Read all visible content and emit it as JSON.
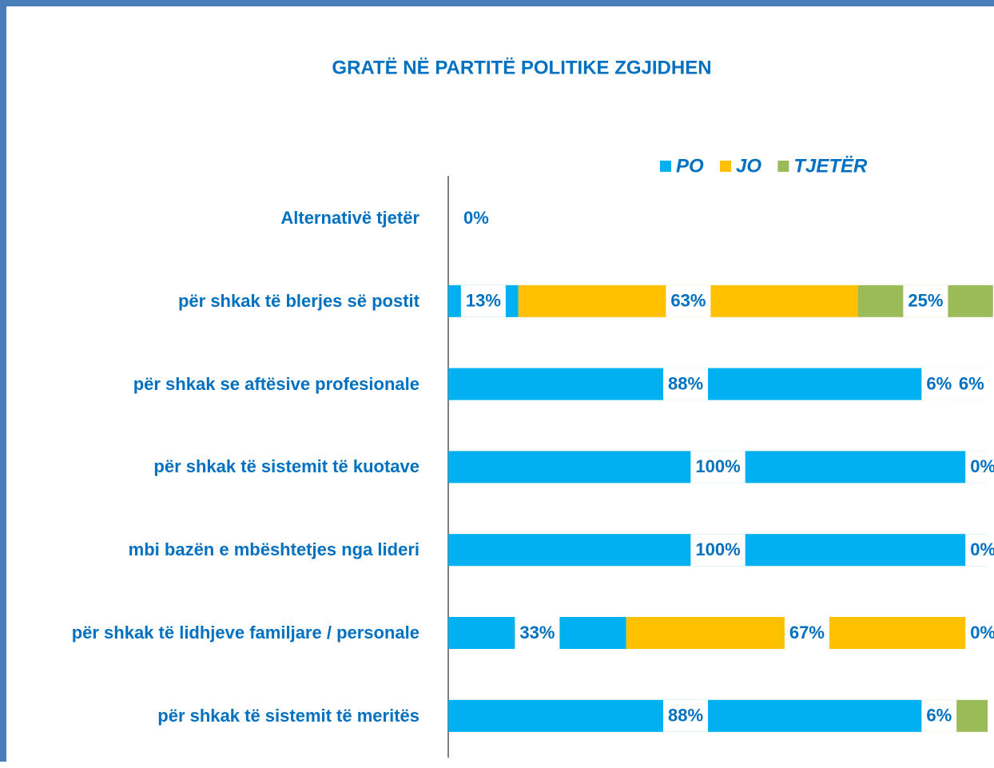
{
  "chart_data": {
    "type": "stacked-bar-horizontal",
    "title": "GRATË NË PARTITË POLITIKE ZGJIDHEN",
    "categories": [
      "Alternativë tjetër",
      "për shkak të blerjes së postit",
      "për shkak se aftësive profesionale",
      "për shkak të sistemit të kuotave",
      "mbi bazën e mbështetjes nga lideri",
      "për shkak të lidhjeve familjare / personale",
      "për shkak të sistemit të meritës"
    ],
    "series": [
      {
        "name": "PO",
        "color": "#00b0f0",
        "values": [
          0,
          13,
          88,
          100,
          100,
          33,
          88
        ],
        "value_labels": [
          "0%",
          "13%",
          "88%",
          "100%",
          "100%",
          "33%",
          "88%"
        ]
      },
      {
        "name": "JO",
        "color": "#ffc000",
        "values": [
          null,
          63,
          6,
          0,
          0,
          67,
          6
        ],
        "value_labels": [
          null,
          "63%",
          "6%",
          "0%",
          "0%",
          "67%",
          "6%"
        ]
      },
      {
        "name": "TJETËR",
        "color": "#9bbb59",
        "values": [
          null,
          25,
          6,
          null,
          null,
          0,
          6
        ],
        "value_labels": [
          null,
          "25%",
          "6%",
          null,
          null,
          "0%",
          null
        ]
      }
    ],
    "xlim": [
      0,
      100
    ],
    "legend": "top-right"
  }
}
